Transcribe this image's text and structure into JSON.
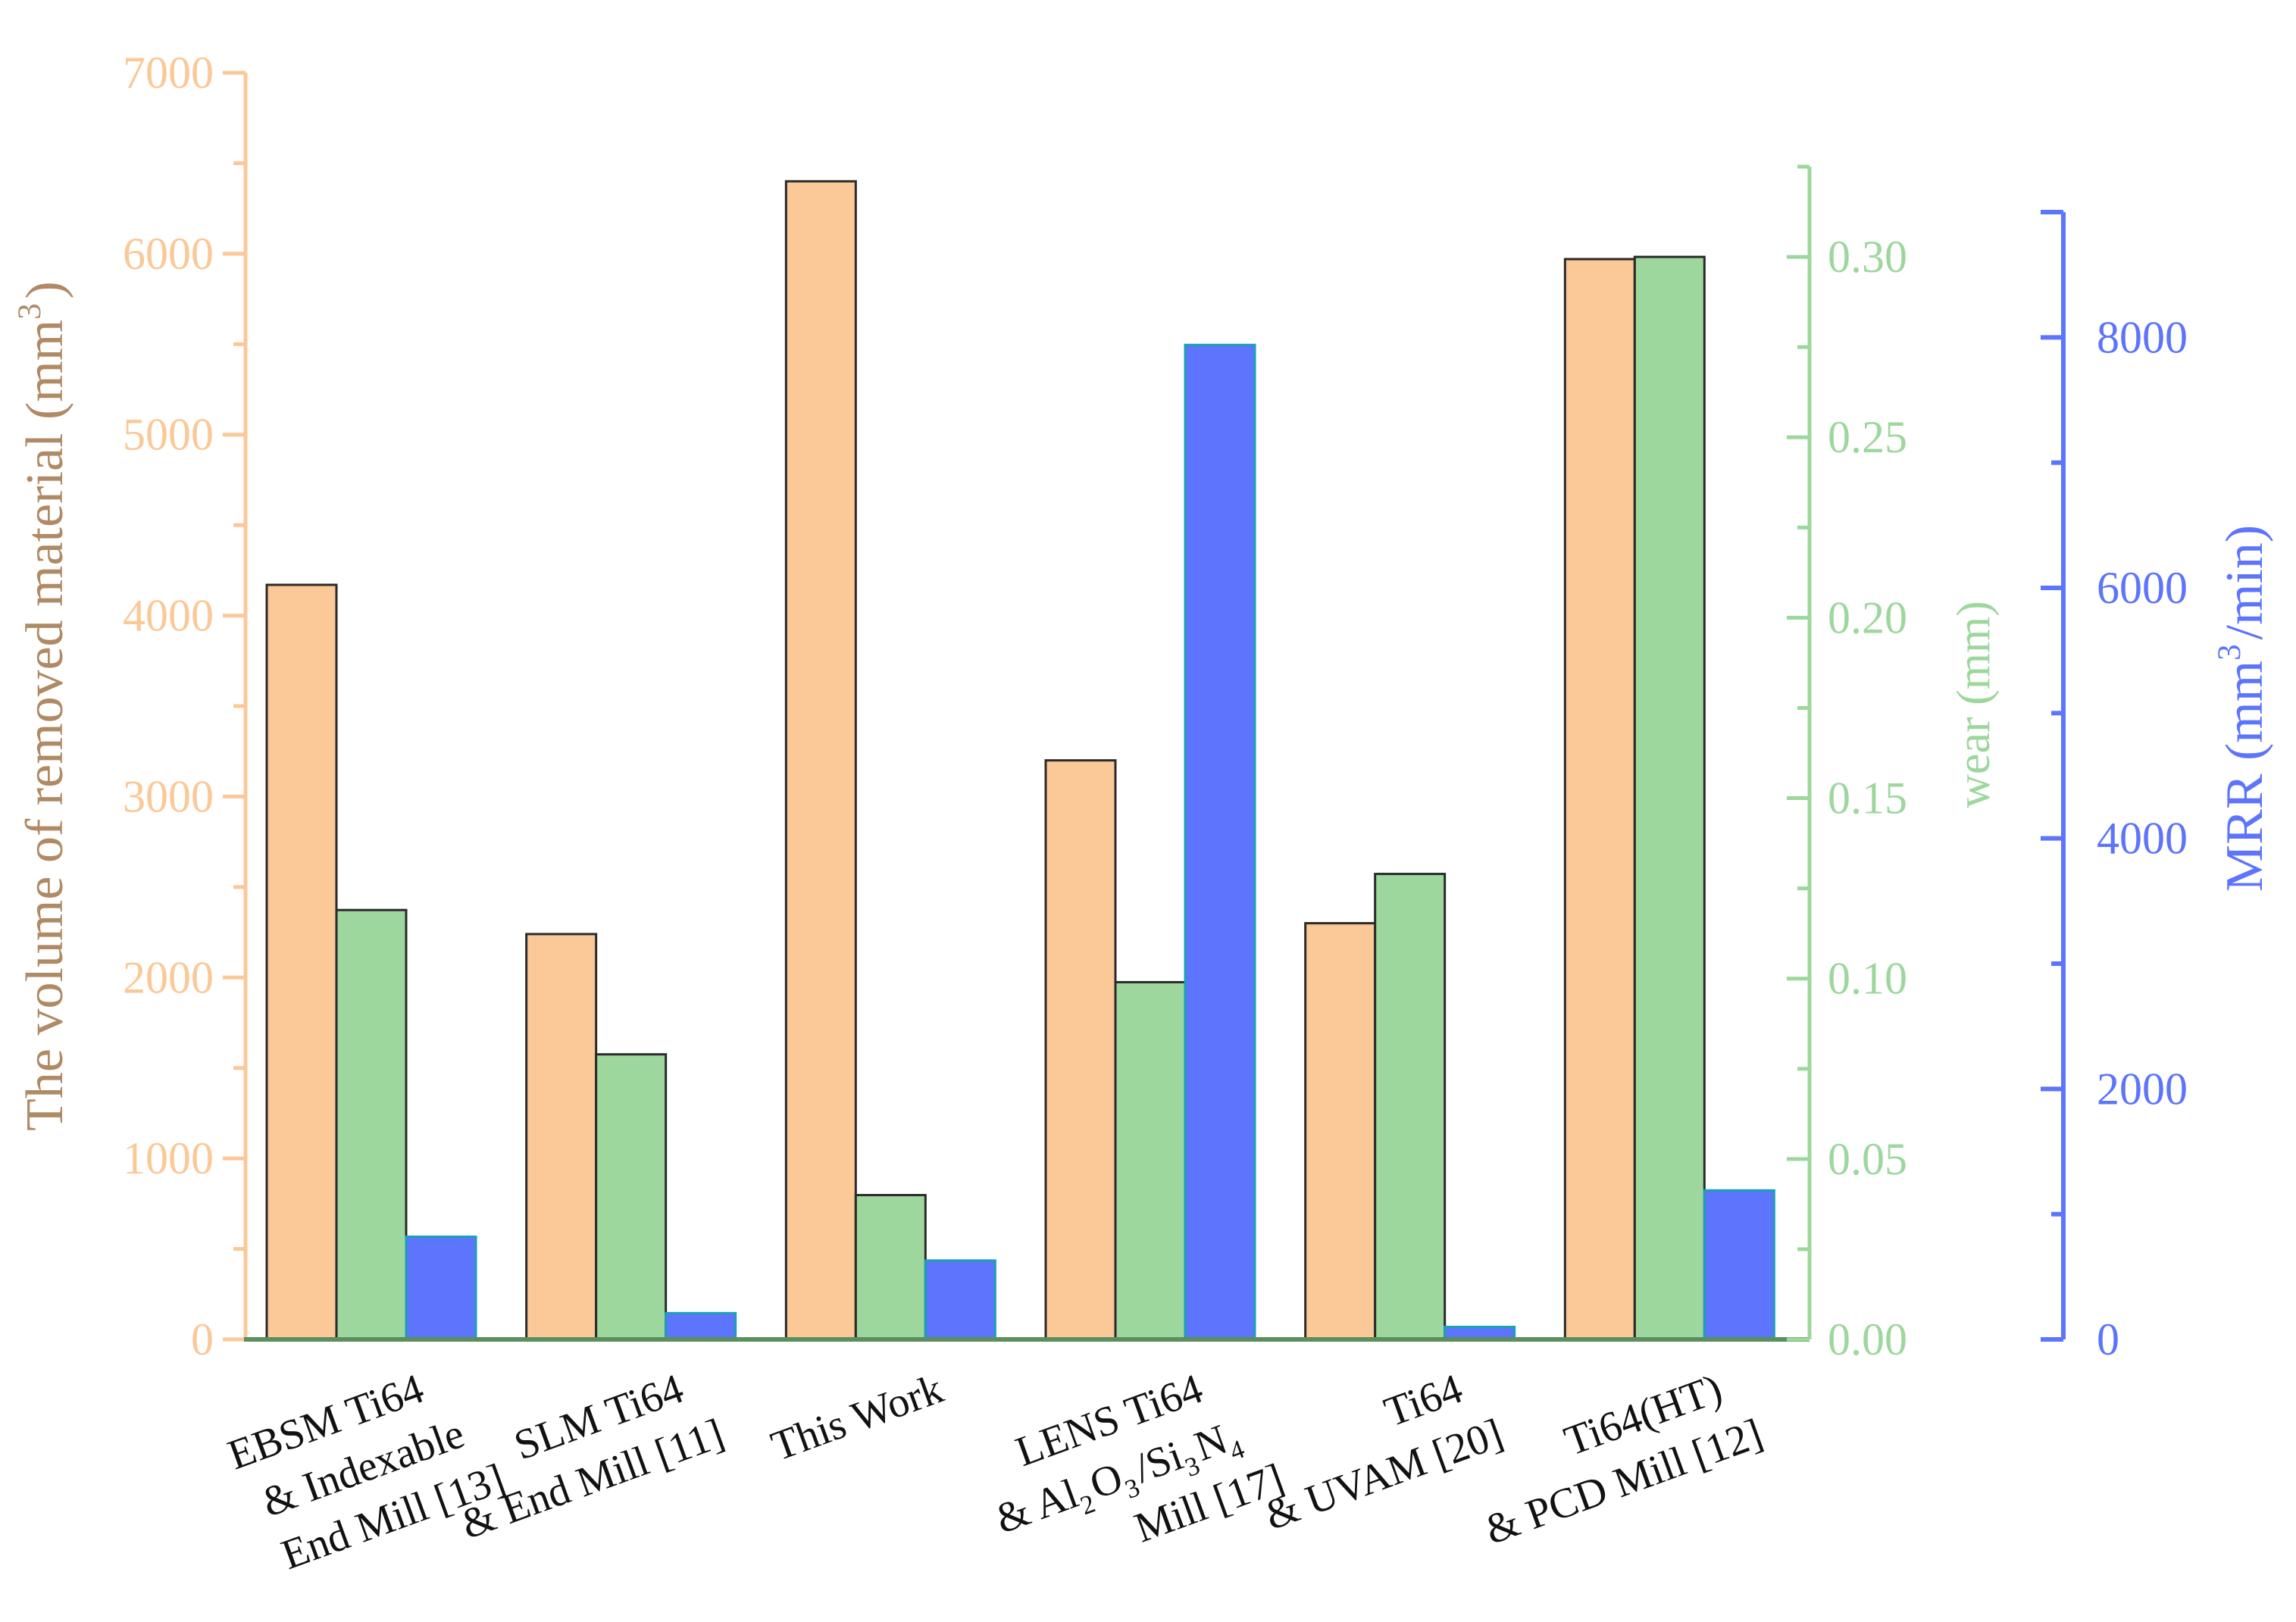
{
  "chart_data": {
    "type": "bar",
    "title": "",
    "categories": [
      [
        "EBSM Ti64",
        "& Indexable",
        "End Mill [13]"
      ],
      [
        "SLM Ti64",
        "& End Mill [11]"
      ],
      [
        "This Work"
      ],
      [
        "LENS Ti64",
        "& Al₂O₃/Si₃N₄",
        "Mill [17]"
      ],
      [
        "Ti64",
        "& UVAM [20]"
      ],
      [
        "Ti64(HT)",
        "& PCD Mill [12]"
      ]
    ],
    "series": [
      {
        "name": "The volume of removed material (mm³)",
        "axis": "left",
        "color": "#FBC897",
        "values": [
          4170,
          2240,
          6400,
          3200,
          2300,
          5970
        ]
      },
      {
        "name": "wear (mm)",
        "axis": "right1",
        "color": "#9DD79D",
        "values": [
          0.119,
          0.079,
          0.04,
          0.099,
          0.129,
          0.3
        ]
      },
      {
        "name": "MRR (mm³/min)",
        "axis": "right2",
        "color": "#5D74FC",
        "values": [
          820,
          210,
          630,
          7940,
          100,
          1190
        ]
      }
    ],
    "axes": {
      "left": {
        "label": "The volume of removed material (mm³)",
        "min": 0,
        "max": 7000,
        "ticks": [
          0,
          1000,
          2000,
          3000,
          4000,
          5000,
          6000,
          7000
        ],
        "tick_labels": [
          "0",
          "1000",
          "2000",
          "3000",
          "4000",
          "5000",
          "6000",
          "7000"
        ],
        "color": "#FBC897",
        "label_color": "#B08A64"
      },
      "right1": {
        "label": "wear (mm)",
        "min": 0,
        "max": 0.325,
        "ticks": [
          0,
          0.05,
          0.1,
          0.15,
          0.2,
          0.25,
          0.3
        ],
        "tick_labels": [
          "0.00",
          "0.05",
          "0.10",
          "0.15",
          "0.20",
          "0.25",
          "0.30"
        ],
        "color": "#9DD79D"
      },
      "right2": {
        "label": "MRR (mm³/min)",
        "min": 0,
        "max": 9000,
        "ticks": [
          0,
          2000,
          4000,
          6000,
          8000
        ],
        "tick_labels": [
          "0",
          "2000",
          "4000",
          "6000",
          "8000"
        ],
        "color": "#5D74FC"
      }
    },
    "grid": false,
    "legend": "none"
  }
}
